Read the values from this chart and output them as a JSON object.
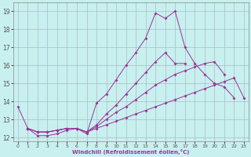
{
  "xlabel": "Windchill (Refroidissement éolien,°C)",
  "background_color": "#c8f0ee",
  "grid_color": "#aabbcc",
  "line_color": "#993399",
  "xlim": [
    -0.5,
    23.5
  ],
  "ylim": [
    11.8,
    19.5
  ],
  "yticks": [
    12,
    13,
    14,
    15,
    16,
    17,
    18,
    19
  ],
  "xticks": [
    0,
    1,
    2,
    3,
    4,
    5,
    6,
    7,
    8,
    9,
    10,
    11,
    12,
    13,
    14,
    15,
    16,
    17,
    18,
    19,
    20,
    21,
    22,
    23
  ],
  "series": [
    {
      "x": [
        0,
        1,
        2,
        3,
        4,
        5,
        6,
        7,
        8,
        9,
        10,
        11,
        12,
        13,
        14,
        15,
        16,
        17,
        18,
        19,
        20,
        21,
        22
      ],
      "y": [
        13.7,
        12.5,
        12.1,
        12.1,
        12.2,
        12.4,
        12.5,
        12.2,
        13.9,
        14.4,
        15.2,
        16.0,
        16.7,
        17.5,
        18.9,
        18.6,
        19.0,
        17.0,
        16.1,
        15.5,
        15.0,
        14.8,
        14.2
      ]
    },
    {
      "x": [
        1,
        2,
        3,
        4,
        5,
        6,
        7,
        8,
        9,
        10,
        11,
        12,
        13,
        14,
        15,
        16,
        17,
        18,
        19,
        20,
        21,
        22,
        23
      ],
      "y": [
        12.5,
        12.3,
        12.3,
        12.4,
        12.5,
        12.5,
        12.3,
        12.5,
        12.7,
        12.9,
        13.1,
        13.3,
        13.5,
        13.7,
        13.9,
        14.1,
        14.3,
        14.5,
        14.7,
        14.9,
        15.1,
        15.3,
        14.2
      ]
    },
    {
      "x": [
        1,
        2,
        3,
        4,
        5,
        6,
        7,
        8,
        9,
        10,
        11,
        12,
        13,
        14,
        15,
        16,
        17,
        18,
        19,
        20,
        21
      ],
      "y": [
        12.5,
        12.3,
        12.3,
        12.4,
        12.5,
        12.5,
        12.3,
        12.6,
        13.0,
        13.4,
        13.7,
        14.1,
        14.5,
        14.9,
        15.2,
        15.5,
        15.7,
        15.9,
        16.1,
        16.2,
        15.5
      ]
    },
    {
      "x": [
        1,
        2,
        3,
        4,
        5,
        6,
        7,
        8,
        9,
        10,
        11,
        12,
        13,
        14,
        15,
        16,
        17
      ],
      "y": [
        12.5,
        12.3,
        12.3,
        12.4,
        12.5,
        12.5,
        12.3,
        12.7,
        13.3,
        13.8,
        14.4,
        15.0,
        15.6,
        16.2,
        16.7,
        16.1,
        16.1
      ]
    }
  ]
}
